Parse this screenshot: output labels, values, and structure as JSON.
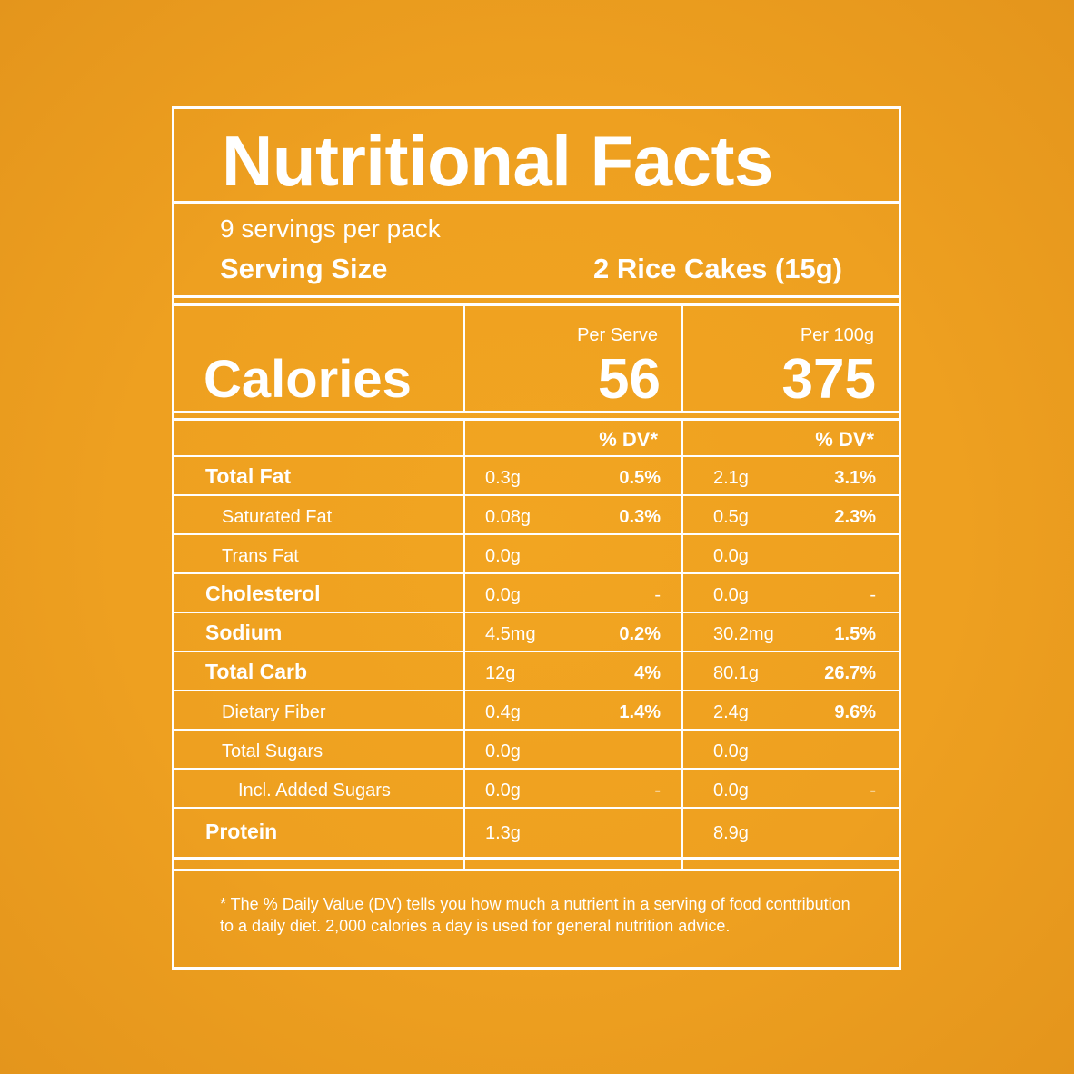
{
  "title": "Nutritional Facts",
  "servings_per_pack": "9 servings per pack",
  "serving_size": {
    "label": "Serving Size",
    "value": "2 Rice Cakes (15g)"
  },
  "calories": {
    "label": "Calories",
    "per_serve_label": "Per Serve",
    "per_serve_value": "56",
    "per_100g_label": "Per 100g",
    "per_100g_value": "375"
  },
  "dv_header": "% DV*",
  "nutrients": [
    {
      "name": "Total Fat",
      "level": 0,
      "serve": "0.3g",
      "serve_dv": "0.5%",
      "per100": "2.1g",
      "per100_dv": "3.1%"
    },
    {
      "name": "Saturated Fat",
      "level": 1,
      "serve": "0.08g",
      "serve_dv": "0.3%",
      "per100": "0.5g",
      "per100_dv": "2.3%"
    },
    {
      "name": "Trans Fat",
      "level": 1,
      "serve": "0.0g",
      "serve_dv": "",
      "per100": "0.0g",
      "per100_dv": ""
    },
    {
      "name": "Cholesterol",
      "level": 0,
      "serve": "0.0g",
      "serve_dv": "-",
      "per100": "0.0g",
      "per100_dv": "-"
    },
    {
      "name": "Sodium",
      "level": 0,
      "serve": "4.5mg",
      "serve_dv": "0.2%",
      "per100": "30.2mg",
      "per100_dv": "1.5%"
    },
    {
      "name": "Total Carb",
      "level": 0,
      "serve": "12g",
      "serve_dv": "4%",
      "per100": "80.1g",
      "per100_dv": "26.7%"
    },
    {
      "name": "Dietary Fiber",
      "level": 1,
      "serve": "0.4g",
      "serve_dv": "1.4%",
      "per100": "2.4g",
      "per100_dv": "9.6%"
    },
    {
      "name": "Total Sugars",
      "level": 1,
      "serve": "0.0g",
      "serve_dv": "",
      "per100": "0.0g",
      "per100_dv": ""
    },
    {
      "name": "Incl. Added Sugars",
      "level": 2,
      "serve": "0.0g",
      "serve_dv": "-",
      "per100": "0.0g",
      "per100_dv": "-"
    },
    {
      "name": "Protein",
      "level": 0,
      "serve": "1.3g",
      "serve_dv": "",
      "per100": "8.9g",
      "per100_dv": ""
    }
  ],
  "footnote": "* The % Daily Value (DV) tells you how much a nutrient in a serving of food contribution to a daily diet. 2,000 calories a day is used for general nutrition advice."
}
